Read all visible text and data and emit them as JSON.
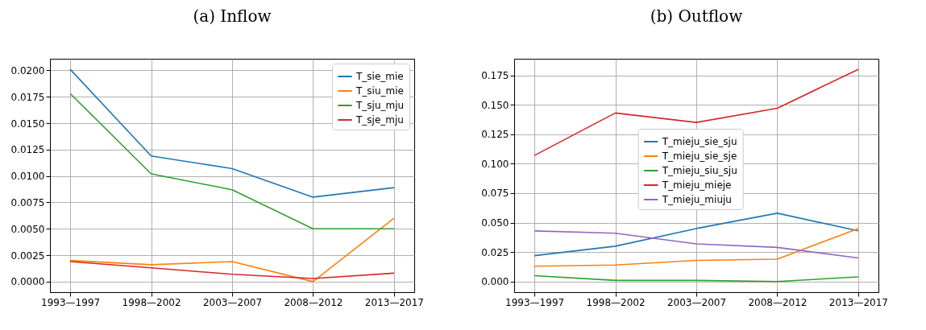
{
  "chart_data": [
    {
      "type": "line",
      "title": "(a) Inflow",
      "categories": [
        "1993—1997",
        "1998—2002",
        "2003—2007",
        "2008—2012",
        "2013—2017"
      ],
      "series": [
        {
          "name": "T_sie_mie",
          "color": "#1f77b4",
          "values": [
            0.0201,
            0.0119,
            0.0107,
            0.008,
            0.0089
          ]
        },
        {
          "name": "T_siu_mie",
          "color": "#ff7f0e",
          "values": [
            0.002,
            0.0016,
            0.0019,
            0.0,
            0.006
          ]
        },
        {
          "name": "T_sju_mju",
          "color": "#2ca02c",
          "values": [
            0.0178,
            0.0102,
            0.0087,
            0.005,
            0.005
          ]
        },
        {
          "name": "T_sje_mju",
          "color": "#d62728",
          "values": [
            0.0019,
            0.0013,
            0.0007,
            0.0003,
            0.0008
          ]
        }
      ],
      "ylim": [
        -0.001,
        0.0211
      ],
      "yticks": [
        {
          "value": 0,
          "label": "0.0000"
        },
        {
          "value": 0.0025,
          "label": "0.0025"
        },
        {
          "value": 0.005,
          "label": "0.0050"
        },
        {
          "value": 0.0075,
          "label": "0.0075"
        },
        {
          "value": 0.01,
          "label": "0.0100"
        },
        {
          "value": 0.0125,
          "label": "0.0125"
        },
        {
          "value": 0.015,
          "label": "0.0150"
        },
        {
          "value": 0.0175,
          "label": "0.0175"
        },
        {
          "value": 0.02,
          "label": "0.0200"
        }
      ],
      "grid": true,
      "legend": "top right",
      "line_style": "solid"
    },
    {
      "type": "line",
      "title": "(b) Outflow",
      "categories": [
        "1993—1997",
        "1998—2002",
        "2003—2007",
        "2008—2012",
        "2013—2017"
      ],
      "series": [
        {
          "name": "T_mieju_sie_sju",
          "color": "#1f77b4",
          "values": [
            0.022,
            0.03,
            0.045,
            0.058,
            0.043
          ]
        },
        {
          "name": "T_mieju_sie_sje",
          "color": "#ff7f0e",
          "values": [
            0.013,
            0.014,
            0.018,
            0.019,
            0.045
          ]
        },
        {
          "name": "T_mieju_siu_sju",
          "color": "#2ca02c",
          "values": [
            0.005,
            0.001,
            0.001,
            0.0,
            0.004
          ]
        },
        {
          "name": "T_mieju_mieje",
          "color": "#d62728",
          "values": [
            0.107,
            0.143,
            0.135,
            0.147,
            0.18
          ]
        },
        {
          "name": "T_mieju_miuju",
          "color": "#9467bd",
          "values": [
            0.043,
            0.041,
            0.032,
            0.029,
            0.02
          ]
        }
      ],
      "ylim": [
        -0.009,
        0.189
      ],
      "yticks": [
        {
          "value": 0,
          "label": "0.000"
        },
        {
          "value": 0.025,
          "label": "0.025"
        },
        {
          "value": 0.05,
          "label": "0.050"
        },
        {
          "value": 0.075,
          "label": "0.075"
        },
        {
          "value": 0.1,
          "label": "0.100"
        },
        {
          "value": 0.125,
          "label": "0.125"
        },
        {
          "value": 0.15,
          "label": "0.150"
        },
        {
          "value": 0.175,
          "label": "0.175"
        }
      ],
      "grid": true,
      "legend": "center",
      "line_style": "solid"
    }
  ]
}
